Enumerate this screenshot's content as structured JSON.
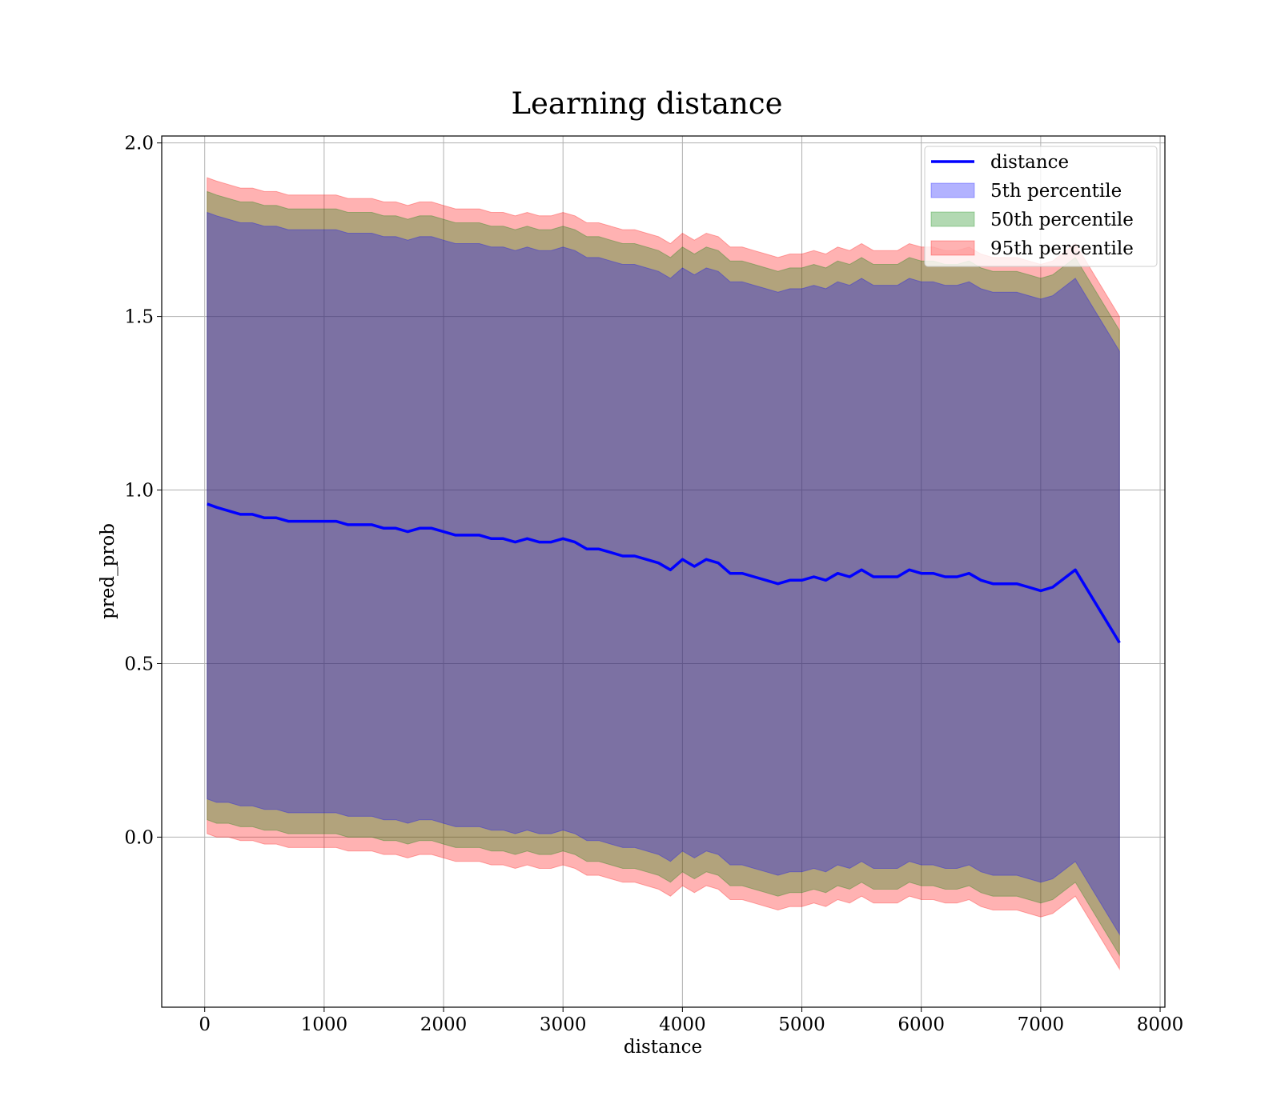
{
  "chart_data": {
    "type": "line",
    "title": "Learning distance",
    "xlabel": "distance",
    "ylabel": "pred_prob",
    "xlim": [
      -360,
      8040
    ],
    "ylim": [
      -0.49,
      2.02
    ],
    "x_ticks": [
      0,
      1000,
      2000,
      3000,
      4000,
      5000,
      6000,
      7000,
      8000
    ],
    "y_ticks": [
      0.0,
      0.5,
      1.0,
      1.5,
      2.0
    ],
    "x_tick_labels": [
      "0",
      "1000",
      "2000",
      "3000",
      "4000",
      "5000",
      "6000",
      "7000",
      "8000"
    ],
    "y_tick_labels": [
      "0.0",
      "0.5",
      "1.0",
      "1.5",
      "2.0"
    ],
    "grid": true,
    "legend_position": "top-right",
    "colors": {
      "line": "#0000ff",
      "band_5": "#0000ff",
      "band_50": "#008000",
      "band_95": "#ff0000"
    },
    "series": [
      {
        "name": "distance",
        "x": [
          20,
          100,
          200,
          300,
          400,
          500,
          600,
          700,
          800,
          900,
          1000,
          1100,
          1200,
          1300,
          1400,
          1500,
          1600,
          1700,
          1800,
          1900,
          2000,
          2100,
          2200,
          2300,
          2400,
          2500,
          2600,
          2700,
          2800,
          2900,
          3000,
          3100,
          3200,
          3300,
          3400,
          3500,
          3600,
          3700,
          3800,
          3900,
          4000,
          4100,
          4200,
          4300,
          4400,
          4500,
          4600,
          4700,
          4800,
          4900,
          5000,
          5100,
          5200,
          5300,
          5400,
          5500,
          5600,
          5700,
          5800,
          5900,
          6000,
          6100,
          6200,
          6300,
          6400,
          6500,
          6600,
          6700,
          6800,
          6900,
          7000,
          7100,
          7290,
          7660
        ],
        "y": [
          0.96,
          0.95,
          0.94,
          0.93,
          0.93,
          0.92,
          0.92,
          0.91,
          0.91,
          0.91,
          0.91,
          0.91,
          0.9,
          0.9,
          0.9,
          0.89,
          0.89,
          0.88,
          0.89,
          0.89,
          0.88,
          0.87,
          0.87,
          0.87,
          0.86,
          0.86,
          0.85,
          0.86,
          0.85,
          0.85,
          0.86,
          0.85,
          0.83,
          0.83,
          0.82,
          0.81,
          0.81,
          0.8,
          0.79,
          0.77,
          0.8,
          0.78,
          0.8,
          0.79,
          0.76,
          0.76,
          0.75,
          0.74,
          0.73,
          0.74,
          0.74,
          0.75,
          0.74,
          0.76,
          0.75,
          0.77,
          0.75,
          0.75,
          0.75,
          0.77,
          0.76,
          0.76,
          0.75,
          0.75,
          0.76,
          0.74,
          0.73,
          0.73,
          0.73,
          0.72,
          0.71,
          0.72,
          0.77,
          0.56
        ]
      },
      {
        "name": "5th percentile",
        "x": [
          20,
          100,
          200,
          300,
          400,
          500,
          600,
          700,
          800,
          900,
          1000,
          1100,
          1200,
          1300,
          1400,
          1500,
          1600,
          1700,
          1800,
          1900,
          2000,
          2100,
          2200,
          2300,
          2400,
          2500,
          2600,
          2700,
          2800,
          2900,
          3000,
          3100,
          3200,
          3300,
          3400,
          3500,
          3600,
          3700,
          3800,
          3900,
          4000,
          4100,
          4200,
          4300,
          4400,
          4500,
          4600,
          4700,
          4800,
          4900,
          5000,
          5100,
          5200,
          5300,
          5400,
          5500,
          5600,
          5700,
          5800,
          5900,
          6000,
          6100,
          6200,
          6300,
          6400,
          6500,
          6600,
          6700,
          6800,
          6900,
          7000,
          7100,
          7290,
          7660
        ],
        "lower": [
          0.11,
          0.1,
          0.1,
          0.09,
          0.09,
          0.08,
          0.08,
          0.07,
          0.07,
          0.07,
          0.07,
          0.07,
          0.06,
          0.06,
          0.06,
          0.05,
          0.05,
          0.04,
          0.05,
          0.05,
          0.04,
          0.03,
          0.03,
          0.03,
          0.02,
          0.02,
          0.01,
          0.02,
          0.01,
          0.01,
          0.02,
          0.01,
          -0.01,
          -0.01,
          -0.02,
          -0.03,
          -0.03,
          -0.04,
          -0.05,
          -0.07,
          -0.04,
          -0.06,
          -0.04,
          -0.05,
          -0.08,
          -0.08,
          -0.09,
          -0.1,
          -0.11,
          -0.1,
          -0.1,
          -0.09,
          -0.1,
          -0.08,
          -0.09,
          -0.07,
          -0.09,
          -0.09,
          -0.09,
          -0.07,
          -0.08,
          -0.08,
          -0.09,
          -0.09,
          -0.08,
          -0.1,
          -0.11,
          -0.11,
          -0.11,
          -0.12,
          -0.13,
          -0.12,
          -0.07,
          -0.28
        ],
        "upper": [
          1.8,
          1.79,
          1.78,
          1.77,
          1.77,
          1.76,
          1.76,
          1.75,
          1.75,
          1.75,
          1.75,
          1.75,
          1.74,
          1.74,
          1.74,
          1.73,
          1.73,
          1.72,
          1.73,
          1.73,
          1.72,
          1.71,
          1.71,
          1.71,
          1.7,
          1.7,
          1.69,
          1.7,
          1.69,
          1.69,
          1.7,
          1.69,
          1.67,
          1.67,
          1.66,
          1.65,
          1.65,
          1.64,
          1.63,
          1.61,
          1.64,
          1.62,
          1.64,
          1.63,
          1.6,
          1.6,
          1.59,
          1.58,
          1.57,
          1.58,
          1.58,
          1.59,
          1.58,
          1.6,
          1.59,
          1.61,
          1.59,
          1.59,
          1.59,
          1.61,
          1.6,
          1.6,
          1.59,
          1.59,
          1.6,
          1.58,
          1.57,
          1.57,
          1.57,
          1.56,
          1.55,
          1.56,
          1.61,
          1.4
        ]
      },
      {
        "name": "50th percentile",
        "x": [
          20,
          100,
          200,
          300,
          400,
          500,
          600,
          700,
          800,
          900,
          1000,
          1100,
          1200,
          1300,
          1400,
          1500,
          1600,
          1700,
          1800,
          1900,
          2000,
          2100,
          2200,
          2300,
          2400,
          2500,
          2600,
          2700,
          2800,
          2900,
          3000,
          3100,
          3200,
          3300,
          3400,
          3500,
          3600,
          3700,
          3800,
          3900,
          4000,
          4100,
          4200,
          4300,
          4400,
          4500,
          4600,
          4700,
          4800,
          4900,
          5000,
          5100,
          5200,
          5300,
          5400,
          5500,
          5600,
          5700,
          5800,
          5900,
          6000,
          6100,
          6200,
          6300,
          6400,
          6500,
          6600,
          6700,
          6800,
          6900,
          7000,
          7100,
          7290,
          7660
        ],
        "lower": [
          0.05,
          0.04,
          0.04,
          0.03,
          0.03,
          0.02,
          0.02,
          0.01,
          0.01,
          0.01,
          0.01,
          0.01,
          0.0,
          0.0,
          0.0,
          -0.01,
          -0.01,
          -0.02,
          -0.01,
          -0.01,
          -0.02,
          -0.03,
          -0.03,
          -0.03,
          -0.04,
          -0.04,
          -0.05,
          -0.04,
          -0.05,
          -0.05,
          -0.04,
          -0.05,
          -0.07,
          -0.07,
          -0.08,
          -0.09,
          -0.09,
          -0.1,
          -0.11,
          -0.13,
          -0.1,
          -0.12,
          -0.1,
          -0.11,
          -0.14,
          -0.14,
          -0.15,
          -0.16,
          -0.17,
          -0.16,
          -0.16,
          -0.15,
          -0.16,
          -0.14,
          -0.15,
          -0.13,
          -0.15,
          -0.15,
          -0.15,
          -0.13,
          -0.14,
          -0.14,
          -0.15,
          -0.15,
          -0.14,
          -0.16,
          -0.17,
          -0.17,
          -0.17,
          -0.18,
          -0.19,
          -0.18,
          -0.13,
          -0.34
        ],
        "upper": [
          1.86,
          1.85,
          1.84,
          1.83,
          1.83,
          1.82,
          1.82,
          1.81,
          1.81,
          1.81,
          1.81,
          1.81,
          1.8,
          1.8,
          1.8,
          1.79,
          1.79,
          1.78,
          1.79,
          1.79,
          1.78,
          1.77,
          1.77,
          1.77,
          1.76,
          1.76,
          1.75,
          1.76,
          1.75,
          1.75,
          1.76,
          1.75,
          1.73,
          1.73,
          1.72,
          1.71,
          1.71,
          1.7,
          1.69,
          1.67,
          1.7,
          1.68,
          1.7,
          1.69,
          1.66,
          1.66,
          1.65,
          1.64,
          1.63,
          1.64,
          1.64,
          1.65,
          1.64,
          1.66,
          1.65,
          1.67,
          1.65,
          1.65,
          1.65,
          1.67,
          1.66,
          1.66,
          1.65,
          1.65,
          1.66,
          1.64,
          1.63,
          1.63,
          1.63,
          1.62,
          1.61,
          1.62,
          1.67,
          1.46
        ]
      },
      {
        "name": "95th percentile",
        "x": [
          20,
          100,
          200,
          300,
          400,
          500,
          600,
          700,
          800,
          900,
          1000,
          1100,
          1200,
          1300,
          1400,
          1500,
          1600,
          1700,
          1800,
          1900,
          2000,
          2100,
          2200,
          2300,
          2400,
          2500,
          2600,
          2700,
          2800,
          2900,
          3000,
          3100,
          3200,
          3300,
          3400,
          3500,
          3600,
          3700,
          3800,
          3900,
          4000,
          4100,
          4200,
          4300,
          4400,
          4500,
          4600,
          4700,
          4800,
          4900,
          5000,
          5100,
          5200,
          5300,
          5400,
          5500,
          5600,
          5700,
          5800,
          5900,
          6000,
          6100,
          6200,
          6300,
          6400,
          6500,
          6600,
          6700,
          6800,
          6900,
          7000,
          7100,
          7290,
          7660
        ],
        "lower": [
          0.01,
          0.0,
          0.0,
          -0.01,
          -0.01,
          -0.02,
          -0.02,
          -0.03,
          -0.03,
          -0.03,
          -0.03,
          -0.03,
          -0.04,
          -0.04,
          -0.04,
          -0.05,
          -0.05,
          -0.06,
          -0.05,
          -0.05,
          -0.06,
          -0.07,
          -0.07,
          -0.07,
          -0.08,
          -0.08,
          -0.09,
          -0.08,
          -0.09,
          -0.09,
          -0.08,
          -0.09,
          -0.11,
          -0.11,
          -0.12,
          -0.13,
          -0.13,
          -0.14,
          -0.15,
          -0.17,
          -0.14,
          -0.16,
          -0.14,
          -0.15,
          -0.18,
          -0.18,
          -0.19,
          -0.2,
          -0.21,
          -0.2,
          -0.2,
          -0.19,
          -0.2,
          -0.18,
          -0.19,
          -0.17,
          -0.19,
          -0.19,
          -0.19,
          -0.17,
          -0.18,
          -0.18,
          -0.19,
          -0.19,
          -0.18,
          -0.2,
          -0.21,
          -0.21,
          -0.21,
          -0.22,
          -0.23,
          -0.22,
          -0.17,
          -0.38
        ],
        "upper": [
          1.9,
          1.89,
          1.88,
          1.87,
          1.87,
          1.86,
          1.86,
          1.85,
          1.85,
          1.85,
          1.85,
          1.85,
          1.84,
          1.84,
          1.84,
          1.83,
          1.83,
          1.82,
          1.83,
          1.83,
          1.82,
          1.81,
          1.81,
          1.81,
          1.8,
          1.8,
          1.79,
          1.8,
          1.79,
          1.79,
          1.8,
          1.79,
          1.77,
          1.77,
          1.76,
          1.75,
          1.75,
          1.74,
          1.73,
          1.71,
          1.74,
          1.72,
          1.74,
          1.73,
          1.7,
          1.7,
          1.69,
          1.68,
          1.67,
          1.68,
          1.68,
          1.69,
          1.68,
          1.7,
          1.69,
          1.71,
          1.69,
          1.69,
          1.69,
          1.71,
          1.7,
          1.7,
          1.69,
          1.69,
          1.7,
          1.68,
          1.67,
          1.67,
          1.67,
          1.66,
          1.65,
          1.66,
          1.71,
          1.5
        ]
      }
    ]
  }
}
